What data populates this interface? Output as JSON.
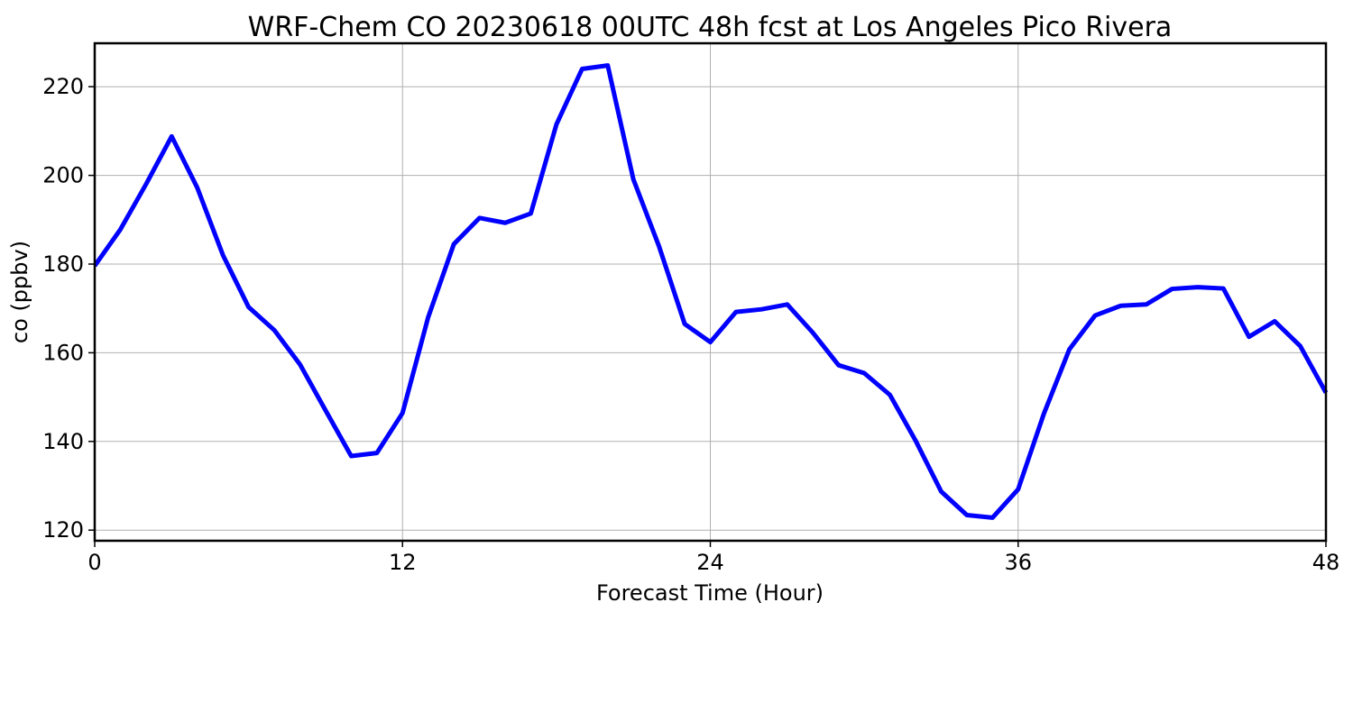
{
  "chart_data": {
    "type": "line",
    "title": "WRF-Chem CO  20230618 00UTC 48h fcst at Los Angeles Pico Rivera",
    "xlabel": "Forecast Time (Hour)",
    "ylabel": "co  (ppbv)",
    "xlim": [
      0,
      48
    ],
    "ylim": [
      117.6,
      229.8
    ],
    "xticks": [
      0,
      12,
      24,
      36,
      48
    ],
    "yticks": [
      120,
      140,
      160,
      180,
      200,
      220
    ],
    "grid": true,
    "line_color": "#0000ff",
    "series": [
      {
        "x": [
          0,
          1,
          2,
          3,
          4,
          5,
          6,
          7,
          8,
          9,
          10,
          11,
          12,
          13,
          14,
          15,
          16,
          17,
          18,
          19,
          20,
          21,
          22,
          23,
          24,
          25,
          26,
          27,
          28,
          29,
          30,
          31,
          32,
          33,
          34,
          35,
          36,
          37,
          38,
          39,
          40,
          41,
          42,
          43,
          44,
          45,
          46,
          47,
          48
        ],
        "values": [
          179.6,
          187.8,
          198.0,
          208.8,
          197.2,
          182.0,
          170.3,
          165.1,
          157.4,
          147.0,
          136.7,
          137.4,
          146.4,
          168.0,
          184.5,
          190.4,
          189.3,
          191.4,
          211.5,
          224.0,
          224.8,
          199.1,
          184.0,
          166.5,
          162.4,
          169.2,
          169.8,
          170.9,
          164.5,
          157.2,
          155.4,
          150.5,
          140.2,
          128.7,
          123.4,
          122.8,
          129.2,
          146.2,
          160.8,
          168.4,
          170.6,
          170.9,
          174.4,
          174.8,
          174.5,
          163.6,
          167.1,
          161.5,
          151.0
        ]
      }
    ]
  }
}
